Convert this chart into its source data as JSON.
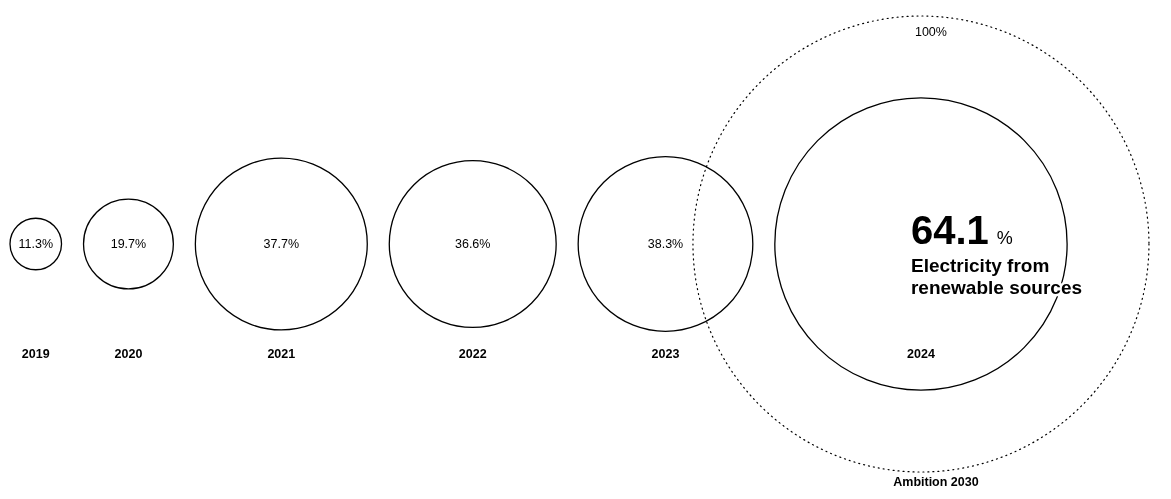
{
  "chart_data": {
    "type": "other",
    "categories": [
      "2019",
      "2020",
      "2021",
      "2022",
      "2023",
      "2024"
    ],
    "series": [
      {
        "values": [
          11.3,
          19.7,
          37.7,
          36.6,
          38.3,
          64.1
        ],
        "value_labels": [
          "11.3%",
          "19.7%",
          "37.7%",
          "36.6%",
          "38.3%",
          "64.1 %"
        ],
        "color": "#000000",
        "line_style": "solid"
      },
      {
        "name": "Ambition 2030",
        "values": [
          null,
          null,
          null,
          null,
          null,
          100
        ],
        "value_labels": [
          null,
          null,
          null,
          null,
          null,
          "100%"
        ],
        "color": "#000000",
        "line_style": "dotted"
      }
    ],
    "annotations": [
      "Electricity from renewable sources"
    ]
  }
}
